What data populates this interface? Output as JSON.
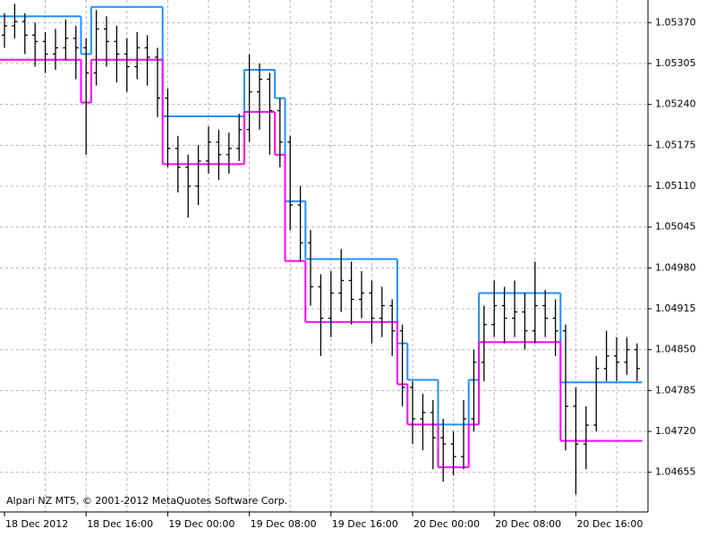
{
  "chart_data": {
    "type": "ohlc",
    "annotation": "Alpari NZ MT5, © 2001-2012 MetaQuotes Software Corp.",
    "categories": [
      "18 Dec 2012",
      null,
      null,
      null,
      null,
      null,
      null,
      null,
      "18 Dec 16:00",
      null,
      null,
      null,
      null,
      null,
      null,
      null,
      "19 Dec 00:00",
      null,
      null,
      null,
      null,
      null,
      null,
      null,
      "19 Dec 08:00",
      null,
      null,
      null,
      null,
      null,
      null,
      null,
      "19 Dec 16:00",
      null,
      null,
      null,
      null,
      null,
      null,
      null,
      "20 Dec 00:00",
      null,
      null,
      null,
      null,
      null,
      null,
      null,
      "20 Dec 08:00",
      null,
      null,
      null,
      null,
      null,
      null,
      null,
      "20 Dec 16:00",
      null,
      null,
      null,
      null,
      null,
      null
    ],
    "open": [
      1.0535,
      1.05365,
      1.05372,
      1.0535,
      1.0534,
      1.0532,
      1.0533,
      1.05345,
      1.0533,
      1.0529,
      1.0536,
      1.0534,
      1.0532,
      1.053,
      1.0533,
      1.05315,
      1.0525,
      1.0517,
      1.0514,
      1.0511,
      1.0515,
      1.0518,
      1.0516,
      1.0517,
      1.052,
      1.0526,
      1.0528,
      1.0523,
      1.0518,
      1.0508,
      1.0502,
      1.0495,
      1.049,
      1.0494,
      1.0496,
      1.0493,
      1.0494,
      1.049,
      1.0492,
      1.0488,
      1.0479,
      1.0474,
      1.0475,
      1.0471,
      1.047,
      1.0468,
      1.0474,
      1.0483,
      1.0489,
      1.0492,
      1.049,
      1.0491,
      1.0488,
      1.0492,
      1.049,
      1.0488,
      1.0476,
      1.047,
      1.0473,
      1.0482,
      1.0484,
      1.0483,
      1.0485
    ],
    "high": [
      1.05385,
      1.054,
      1.05385,
      1.0537,
      1.05355,
      1.0536,
      1.05375,
      1.05365,
      1.05345,
      1.0539,
      1.0538,
      1.05365,
      1.05345,
      1.05355,
      1.0535,
      1.0533,
      1.05265,
      1.0519,
      1.0516,
      1.05175,
      1.05205,
      1.052,
      1.05195,
      1.05225,
      1.0532,
      1.05305,
      1.0529,
      1.0525,
      1.0519,
      1.0511,
      1.0504,
      1.0497,
      1.04975,
      1.0501,
      1.0499,
      1.04975,
      1.0496,
      1.0495,
      1.0493,
      1.0489,
      1.048,
      1.0478,
      1.0477,
      1.0474,
      1.0472,
      1.0477,
      1.0485,
      1.0492,
      1.0496,
      1.0495,
      1.0496,
      1.0494,
      1.0499,
      1.04945,
      1.0493,
      1.0489,
      1.0479,
      1.0476,
      1.0484,
      1.0488,
      1.0487,
      1.0487,
      1.0486
    ],
    "low": [
      1.0533,
      1.05345,
      1.0532,
      1.053,
      1.0529,
      1.05295,
      1.0531,
      1.0528,
      1.0516,
      1.0527,
      1.053,
      1.05275,
      1.0526,
      1.0528,
      1.0527,
      1.0522,
      1.0514,
      1.051,
      1.0506,
      1.0508,
      1.0513,
      1.0512,
      1.0513,
      1.0515,
      1.0518,
      1.052,
      1.0516,
      1.0514,
      1.0504,
      1.0499,
      1.0492,
      1.0484,
      1.0487,
      1.0491,
      1.0489,
      1.049,
      1.0486,
      1.0487,
      1.0484,
      1.0476,
      1.047,
      1.0469,
      1.0466,
      1.0464,
      1.0465,
      1.0466,
      1.0472,
      1.048,
      1.0487,
      1.0486,
      1.0487,
      1.0485,
      1.0486,
      1.0487,
      1.0484,
      1.0469,
      1.0462,
      1.0466,
      1.0472,
      1.048,
      1.048,
      1.0481,
      1.048
    ],
    "close": [
      1.05365,
      1.05372,
      1.0535,
      1.0534,
      1.0532,
      1.0533,
      1.05345,
      1.0533,
      1.0529,
      1.0536,
      1.0534,
      1.0532,
      1.053,
      1.0533,
      1.05315,
      1.0525,
      1.0517,
      1.0514,
      1.0511,
      1.0515,
      1.0518,
      1.0516,
      1.0517,
      1.052,
      1.0526,
      1.0528,
      1.0523,
      1.0518,
      1.0508,
      1.0502,
      1.0495,
      1.049,
      1.0494,
      1.0496,
      1.0493,
      1.0494,
      1.049,
      1.0492,
      1.0488,
      1.0479,
      1.0474,
      1.0475,
      1.0471,
      1.047,
      1.0468,
      1.0474,
      1.0483,
      1.0489,
      1.0492,
      1.049,
      1.0491,
      1.0488,
      1.0492,
      1.049,
      1.0488,
      1.0476,
      1.047,
      1.0473,
      1.0482,
      1.0484,
      1.0483,
      1.0485,
      1.0482
    ],
    "bar_color": "#000000",
    "lines": [
      {
        "color": "#1e90ff",
        "values": [
          1.0538,
          1.0538,
          1.0538,
          1.0538,
          1.0538,
          1.0538,
          1.0538,
          1.0538,
          1.0532,
          1.05395,
          1.05395,
          1.05395,
          1.05395,
          1.05395,
          1.05395,
          1.05395,
          1.05221,
          1.05221,
          1.05221,
          1.05221,
          1.05221,
          1.05221,
          1.05221,
          1.05221,
          1.05295,
          1.05295,
          1.05295,
          1.0525,
          1.05086,
          1.05086,
          1.04994,
          1.04994,
          1.04994,
          1.04994,
          1.04994,
          1.04994,
          1.04994,
          1.04994,
          1.04994,
          1.0486,
          1.04802,
          1.04802,
          1.04802,
          1.04731,
          1.04731,
          1.04731,
          1.04802,
          1.0494,
          1.0494,
          1.0494,
          1.0494,
          1.0494,
          1.0494,
          1.0494,
          1.0494,
          1.04798,
          1.04798,
          1.04798,
          1.04798,
          1.04798,
          1.04798,
          1.04798,
          1.04798
        ]
      },
      {
        "color": "#ff00ff",
        "values": [
          1.05311,
          1.05311,
          1.05311,
          1.05311,
          1.05311,
          1.05311,
          1.05311,
          1.05311,
          1.05243,
          1.05311,
          1.05311,
          1.05311,
          1.05311,
          1.05311,
          1.05311,
          1.05311,
          1.05145,
          1.05145,
          1.05145,
          1.05145,
          1.05145,
          1.05145,
          1.05145,
          1.05145,
          1.05228,
          1.05228,
          1.05228,
          1.0516,
          1.04991,
          1.04991,
          1.04894,
          1.04894,
          1.04894,
          1.04894,
          1.04894,
          1.04894,
          1.04894,
          1.04894,
          1.04894,
          1.04795,
          1.04731,
          1.04731,
          1.04731,
          1.04663,
          1.04663,
          1.04663,
          1.04731,
          1.04862,
          1.04862,
          1.04862,
          1.04862,
          1.04862,
          1.04862,
          1.04862,
          1.04862,
          1.04705,
          1.04705,
          1.04705,
          1.04705,
          1.04705,
          1.04705,
          1.04705,
          1.04705
        ]
      }
    ],
    "ylim": [
      1.04592,
      1.05406
    ],
    "yticks": [
      {
        "value": 1.0537,
        "label": "1.05370"
      },
      {
        "value": 1.05305,
        "label": "1.05305"
      },
      {
        "value": 1.0524,
        "label": "1.05240"
      },
      {
        "value": 1.05175,
        "label": "1.05175"
      },
      {
        "value": 1.0511,
        "label": "1.05110"
      },
      {
        "value": 1.05045,
        "label": "1.05045"
      },
      {
        "value": 1.0498,
        "label": "1.04980"
      },
      {
        "value": 1.04915,
        "label": "1.04915"
      },
      {
        "value": 1.0485,
        "label": "1.04850"
      },
      {
        "value": 1.04785,
        "label": "1.04785"
      },
      {
        "value": 1.0472,
        "label": "1.04720"
      },
      {
        "value": 1.04655,
        "label": "1.04655"
      }
    ],
    "grid": true
  }
}
